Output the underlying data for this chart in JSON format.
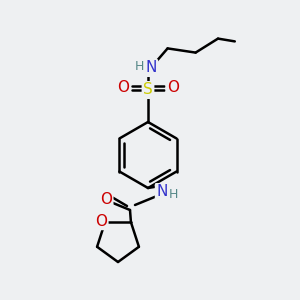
{
  "bg_color": "#eef0f2",
  "atom_colors": {
    "C": "#000000",
    "N": "#3333cc",
    "O": "#cc0000",
    "S": "#cccc00",
    "H": "#558888"
  },
  "bond_color": "#000000",
  "bond_width": 1.8,
  "font_size_atom": 11,
  "font_size_h": 9,
  "scale": 1.0
}
